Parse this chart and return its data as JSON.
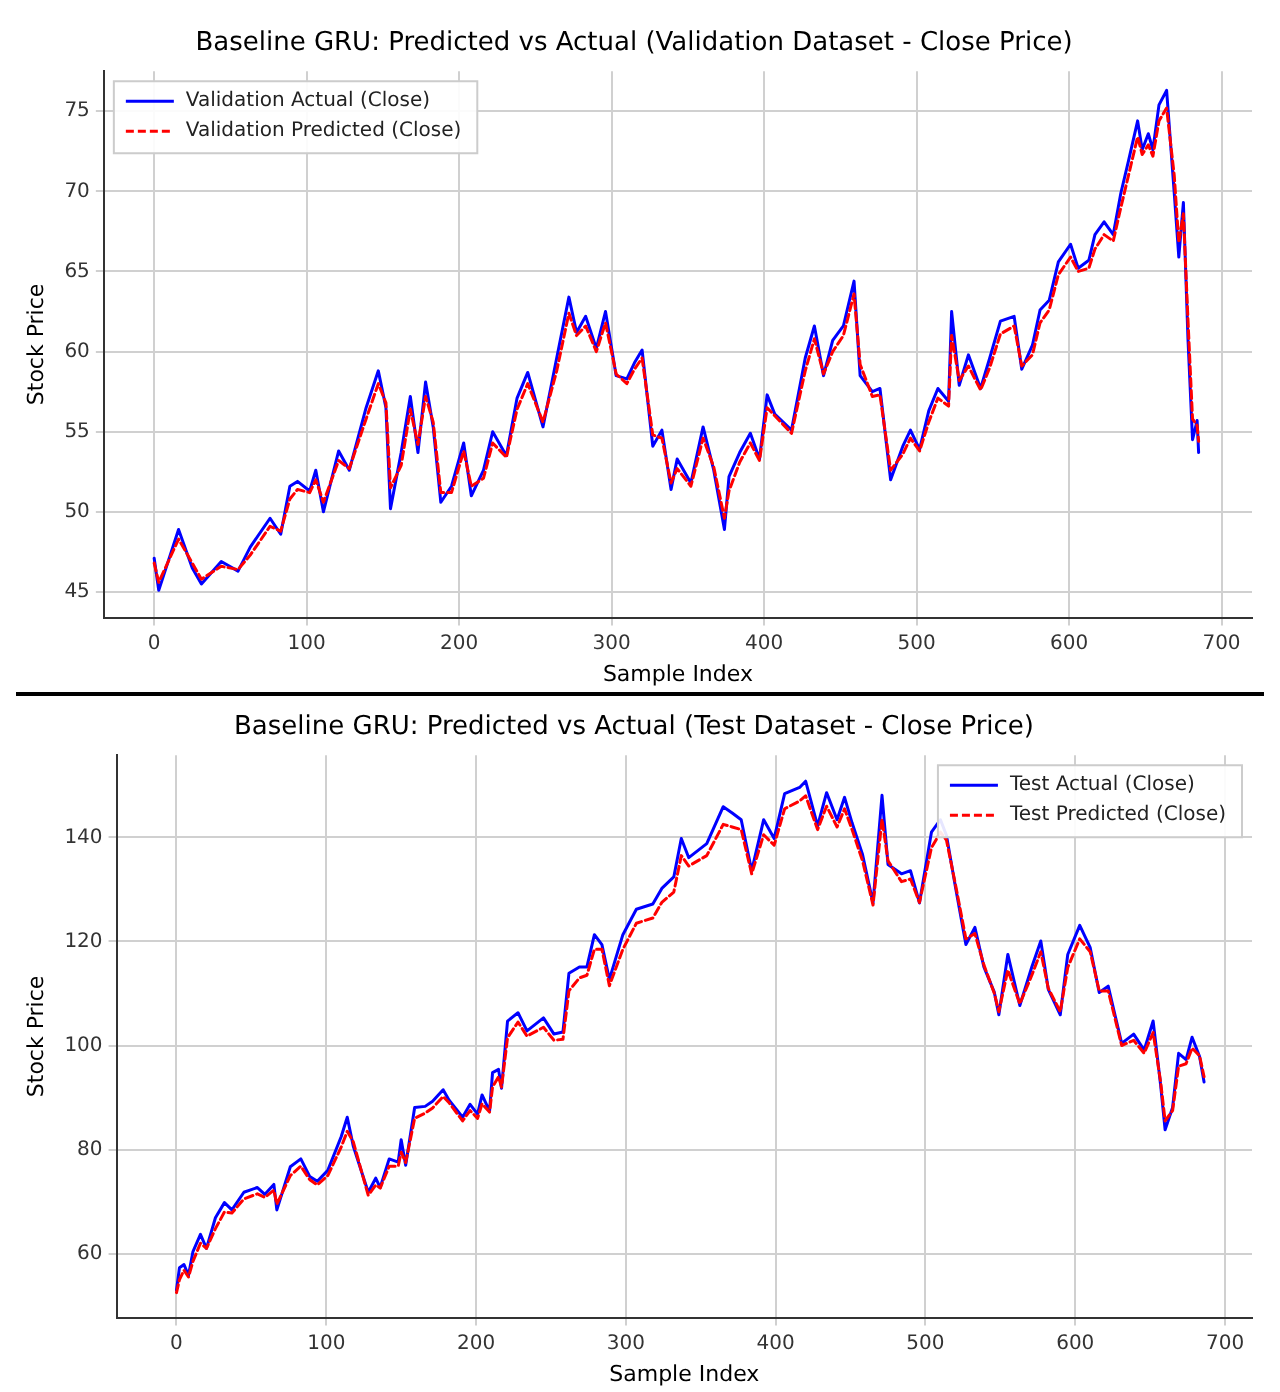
{
  "chart_data": [
    {
      "type": "line",
      "title": "Baseline GRU: Predicted vs Actual (Validation Dataset - Close Price)",
      "xlabel": "Sample Index",
      "ylabel": "Stock Price",
      "x": [
        0,
        3,
        16,
        25,
        31,
        44,
        55,
        63,
        76,
        83,
        89,
        94,
        102,
        106,
        111,
        121,
        128,
        139,
        147,
        152,
        155,
        162,
        168,
        173,
        178,
        183,
        188,
        195,
        203,
        208,
        216,
        222,
        231,
        238,
        245,
        255,
        264,
        272,
        277,
        283,
        290,
        296,
        303,
        310,
        315,
        320,
        327,
        333,
        339,
        343,
        352,
        360,
        367,
        374,
        377,
        384,
        391,
        397,
        402,
        407,
        418,
        427,
        433,
        439,
        445,
        452,
        459,
        463,
        471,
        476,
        483,
        491,
        496,
        502,
        508,
        514,
        521,
        523,
        528,
        534,
        542,
        548,
        555,
        564,
        569,
        576,
        581,
        587,
        593,
        601,
        606,
        613,
        617,
        623,
        629,
        634,
        639,
        645,
        648,
        652,
        655,
        659,
        664,
        669,
        672,
        675,
        678,
        681,
        684,
        685
      ],
      "series": [
        {
          "name": "Validation Actual (Close)",
          "color": "#0000ff",
          "line_style": "solid",
          "values": [
            47.1,
            45.1,
            48.9,
            46.5,
            45.5,
            46.9,
            46.3,
            47.8,
            49.6,
            48.6,
            51.6,
            51.9,
            51.3,
            52.6,
            50.0,
            53.8,
            52.6,
            56.5,
            58.8,
            56.5,
            50.2,
            53.7,
            57.2,
            53.7,
            58.1,
            55.3,
            50.6,
            51.6,
            54.3,
            51.0,
            52.6,
            55.0,
            53.5,
            57.1,
            58.7,
            55.3,
            59.6,
            63.4,
            61.2,
            62.2,
            60.2,
            62.5,
            58.5,
            58.3,
            59.3,
            60.1,
            54.1,
            55.1,
            51.4,
            53.3,
            51.8,
            55.3,
            52.6,
            48.9,
            52.2,
            53.7,
            54.9,
            53.3,
            57.3,
            56.1,
            55.1,
            59.6,
            61.6,
            58.5,
            60.7,
            61.6,
            64.4,
            58.5,
            57.5,
            57.7,
            52.0,
            54.1,
            55.1,
            53.9,
            56.3,
            57.7,
            56.9,
            62.5,
            57.9,
            59.8,
            57.7,
            59.6,
            61.9,
            62.2,
            58.9,
            60.4,
            62.6,
            63.2,
            65.6,
            66.7,
            65.2,
            65.7,
            67.3,
            68.1,
            67.3,
            69.9,
            71.9,
            74.4,
            72.6,
            73.6,
            72.6,
            75.4,
            76.3,
            69.9,
            65.9,
            69.3,
            60.8,
            54.5,
            55.7,
            53.7
          ]
        },
        {
          "name": "Validation Predicted (Close)",
          "color": "#ff0000",
          "line_style": "dashed",
          "values": [
            46.8,
            45.6,
            48.3,
            46.8,
            45.8,
            46.6,
            46.4,
            47.3,
            49.1,
            48.8,
            50.8,
            51.4,
            51.2,
            52.0,
            50.6,
            53.2,
            52.7,
            55.8,
            58.0,
            56.8,
            51.5,
            52.9,
            56.4,
            54.2,
            57.2,
            55.6,
            51.2,
            51.2,
            53.8,
            51.6,
            52.1,
            54.3,
            53.4,
            56.4,
            58.0,
            55.6,
            58.8,
            62.4,
            61.0,
            61.6,
            60.0,
            61.8,
            58.6,
            58.0,
            58.9,
            59.6,
            54.8,
            54.6,
            51.8,
            52.7,
            51.6,
            54.6,
            52.8,
            49.6,
            51.3,
            53.1,
            54.3,
            53.2,
            56.5,
            56.0,
            54.9,
            58.8,
            60.8,
            58.6,
            60.0,
            61.0,
            63.6,
            59.2,
            57.2,
            57.3,
            52.6,
            53.6,
            54.6,
            53.8,
            55.6,
            57.1,
            56.6,
            61.0,
            58.2,
            59.1,
            57.6,
            59.0,
            61.1,
            61.6,
            59.1,
            59.8,
            61.8,
            62.6,
            64.8,
            65.9,
            65.0,
            65.2,
            66.4,
            67.3,
            66.9,
            69.0,
            71.0,
            73.4,
            72.3,
            72.9,
            72.2,
            74.4,
            75.2,
            71.0,
            66.8,
            68.6,
            62.0,
            55.8,
            55.4,
            54.4
          ]
        }
      ],
      "xlim": [
        -33,
        720
      ],
      "xticks": [
        0,
        100,
        200,
        300,
        400,
        500,
        600,
        700
      ],
      "ylim": [
        43.4,
        77.5
      ],
      "yticks": [
        45,
        50,
        55,
        60,
        65,
        70,
        75
      ],
      "grid": true,
      "legend": "top left",
      "marker": "none"
    },
    {
      "type": "line",
      "title": "Baseline GRU: Predicted vs Actual (Test Dataset - Close Price)",
      "xlabel": "Sample Index",
      "ylabel": "Stock Price",
      "x": [
        0,
        2,
        5,
        8,
        11,
        16,
        20,
        26,
        32,
        37,
        45,
        54,
        59,
        65,
        67,
        76,
        83,
        89,
        94,
        101,
        110,
        114,
        118,
        128,
        133,
        136,
        142,
        148,
        150,
        153,
        159,
        166,
        171,
        178,
        182,
        191,
        196,
        201,
        204,
        209,
        211,
        215,
        217,
        221,
        228,
        234,
        245,
        252,
        258,
        262,
        269,
        274,
        279,
        284,
        289,
        298,
        307,
        318,
        324,
        332,
        337,
        342,
        354,
        365,
        371,
        377,
        384,
        392,
        399,
        406,
        416,
        420,
        428,
        434,
        441,
        446,
        451,
        458,
        465,
        471,
        475,
        484,
        490,
        496,
        504,
        510,
        514,
        520,
        527,
        533,
        539,
        546,
        549,
        555,
        563,
        571,
        577,
        582,
        590,
        595,
        603,
        610,
        616,
        622,
        631,
        639,
        646,
        652,
        657,
        660,
        665,
        669,
        674,
        678,
        683,
        686
      ],
      "series": [
        {
          "name": "Test Actual (Close)",
          "color": "#0000ff",
          "line_style": "solid",
          "values": [
            53.0,
            57.3,
            57.9,
            55.8,
            60.4,
            63.7,
            61.0,
            66.9,
            69.8,
            68.4,
            71.8,
            72.7,
            71.4,
            73.3,
            68.4,
            76.7,
            78.2,
            74.8,
            73.9,
            76.0,
            82.5,
            86.2,
            80.7,
            71.8,
            74.5,
            72.7,
            78.2,
            77.6,
            81.9,
            77.0,
            88.1,
            88.3,
            89.3,
            91.5,
            89.5,
            86.2,
            88.7,
            86.8,
            90.5,
            87.4,
            94.8,
            95.4,
            91.8,
            104.7,
            106.3,
            102.8,
            105.3,
            102.2,
            102.6,
            113.9,
            115.1,
            115.1,
            121.3,
            119.4,
            112.7,
            121.3,
            126.2,
            127.2,
            130.2,
            132.4,
            139.8,
            136.1,
            138.8,
            145.9,
            144.7,
            143.4,
            133.6,
            143.4,
            139.8,
            148.4,
            149.6,
            150.8,
            142.2,
            148.6,
            143.4,
            147.7,
            142.8,
            136.7,
            127.4,
            148.1,
            134.8,
            133.0,
            133.6,
            127.4,
            141.0,
            143.4,
            140.4,
            130.5,
            119.4,
            122.7,
            115.1,
            110.2,
            105.9,
            117.5,
            107.7,
            115.1,
            120.1,
            110.8,
            105.9,
            117.5,
            123.1,
            118.8,
            110.2,
            111.4,
            100.4,
            102.2,
            99.1,
            104.7,
            92.4,
            83.8,
            88.1,
            98.5,
            97.3,
            101.6,
            97.9,
            93.0
          ]
        },
        {
          "name": "Test Predicted (Close)",
          "color": "#ff0000",
          "line_style": "dashed",
          "values": [
            52.5,
            55.0,
            56.8,
            55.5,
            58.5,
            62.0,
            61.0,
            64.8,
            68.0,
            67.8,
            70.5,
            71.5,
            70.8,
            72.2,
            69.5,
            75.0,
            76.8,
            74.2,
            73.2,
            75.0,
            80.5,
            83.5,
            81.5,
            71.2,
            73.2,
            72.6,
            76.8,
            76.8,
            79.5,
            77.5,
            86.0,
            87.0,
            88.0,
            90.2,
            89.0,
            85.5,
            87.5,
            86.0,
            88.8,
            87.2,
            92.0,
            94.0,
            92.0,
            101.5,
            104.5,
            101.8,
            103.5,
            101.0,
            101.2,
            110.5,
            113.0,
            113.5,
            118.5,
            118.5,
            111.5,
            118.5,
            123.5,
            124.5,
            127.5,
            129.5,
            136.5,
            134.5,
            136.5,
            142.5,
            142.0,
            141.5,
            133.0,
            140.5,
            138.5,
            145.5,
            147.0,
            148.0,
            141.5,
            146.0,
            142.0,
            145.5,
            141.5,
            135.5,
            127.0,
            143.5,
            135.5,
            131.5,
            132.0,
            127.5,
            138.0,
            141.0,
            139.5,
            131.0,
            120.5,
            121.5,
            115.5,
            110.0,
            106.5,
            114.5,
            108.0,
            113.5,
            118.0,
            111.0,
            106.5,
            115.0,
            120.5,
            118.0,
            110.5,
            110.5,
            100.0,
            101.0,
            98.5,
            102.5,
            93.0,
            85.5,
            87.5,
            96.0,
            96.5,
            99.5,
            98.0,
            94.0
          ]
        }
      ],
      "xlim": [
        -40,
        718
      ],
      "xticks": [
        0,
        100,
        200,
        300,
        400,
        500,
        600,
        700
      ],
      "ylim": [
        47.7,
        155.8
      ],
      "yticks": [
        60,
        80,
        100,
        120,
        140
      ],
      "grid": true,
      "legend": "top right",
      "marker": "none"
    }
  ]
}
